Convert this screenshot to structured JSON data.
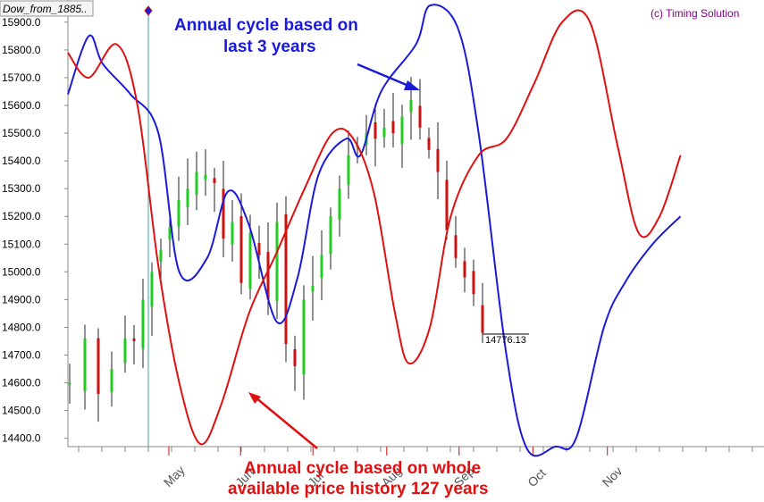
{
  "window": {
    "tab_title": "Dow_from_1885..",
    "copyright": "(c) Timing Solution"
  },
  "colors": {
    "background": "#ffffff",
    "bull_bar": "#22cc22",
    "bear_bar": "#cc1111",
    "cycle_3y": "#1a1adb",
    "cycle_127y": "#e01010",
    "vertical_marker": "#3aa3a3"
  },
  "chart_data": {
    "type": "line",
    "y_axis": {
      "ylim": [
        14370,
        15980
      ],
      "ticks": [
        "15900.0",
        "15800.0",
        "15700.0",
        "15600.0",
        "15500.0",
        "15400.0",
        "15300.0",
        "15200.0",
        "15100.0",
        "15000.0",
        "14900.0",
        "14800.0",
        "14700.0",
        "14600.0",
        "14500.0",
        "14400.0"
      ]
    },
    "x_axis": {
      "labels": [
        "May",
        "Jun",
        "Jul",
        "Aug",
        "Sep",
        "Oct",
        "Nov"
      ],
      "label_positions": [
        0.145,
        0.248,
        0.352,
        0.458,
        0.562,
        0.668,
        0.775
      ]
    },
    "last_price_label": "14776.13",
    "series": [
      {
        "name": "Annual cycle based on last 3 years",
        "points": [
          [
            0.0,
            15640
          ],
          [
            0.03,
            15850
          ],
          [
            0.05,
            15750
          ],
          [
            0.09,
            15640
          ],
          [
            0.13,
            15500
          ],
          [
            0.16,
            15000
          ],
          [
            0.2,
            15050
          ],
          [
            0.23,
            15290
          ],
          [
            0.26,
            15170
          ],
          [
            0.3,
            14820
          ],
          [
            0.33,
            14980
          ],
          [
            0.36,
            15350
          ],
          [
            0.4,
            15480
          ],
          [
            0.42,
            15420
          ],
          [
            0.45,
            15650
          ],
          [
            0.5,
            15820
          ],
          [
            0.52,
            15960
          ],
          [
            0.56,
            15880
          ],
          [
            0.59,
            15500
          ],
          [
            0.63,
            14700
          ],
          [
            0.66,
            14360
          ],
          [
            0.7,
            14370
          ],
          [
            0.73,
            14400
          ],
          [
            0.77,
            14800
          ],
          [
            0.8,
            14960
          ],
          [
            0.84,
            15100
          ],
          [
            0.88,
            15200
          ]
        ]
      },
      {
        "name": "Annual cycle based on whole available price history 127 years",
        "points": [
          [
            0.0,
            15790
          ],
          [
            0.03,
            15700
          ],
          [
            0.07,
            15820
          ],
          [
            0.1,
            15600
          ],
          [
            0.13,
            15020
          ],
          [
            0.16,
            14600
          ],
          [
            0.19,
            14380
          ],
          [
            0.22,
            14520
          ],
          [
            0.26,
            14850
          ],
          [
            0.3,
            15070
          ],
          [
            0.34,
            15300
          ],
          [
            0.38,
            15500
          ],
          [
            0.41,
            15480
          ],
          [
            0.44,
            15280
          ],
          [
            0.47,
            14850
          ],
          [
            0.49,
            14670
          ],
          [
            0.52,
            14800
          ],
          [
            0.55,
            15200
          ],
          [
            0.59,
            15420
          ],
          [
            0.63,
            15480
          ],
          [
            0.67,
            15680
          ],
          [
            0.71,
            15900
          ],
          [
            0.75,
            15900
          ],
          [
            0.79,
            15450
          ],
          [
            0.82,
            15140
          ],
          [
            0.85,
            15200
          ],
          [
            0.88,
            15420
          ]
        ]
      }
    ],
    "annotations": [
      {
        "id": "blue",
        "lines": [
          "Annual cycle based on",
          "last 3 years"
        ]
      },
      {
        "id": "red",
        "lines": [
          "Annual cycle based on whole",
          "available price history 127 years"
        ]
      }
    ]
  }
}
